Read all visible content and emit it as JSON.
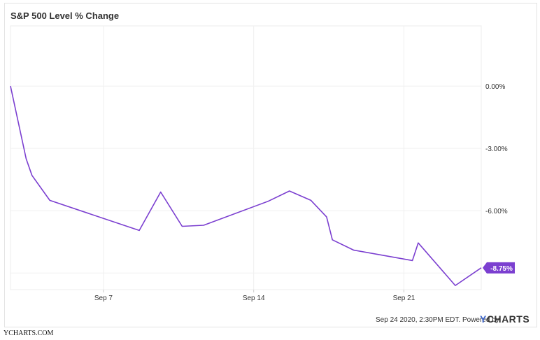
{
  "chart_data": {
    "type": "line",
    "title": "S&P 500 Level % Change",
    "ylabel": "",
    "xlabel": "",
    "ylim": [
      -9.8,
      2.9
    ],
    "y_ticks": [
      0,
      -3,
      -6
    ],
    "y_tick_labels": [
      "0.00%",
      "-3.00%",
      "-6.00%"
    ],
    "x_ticks": [
      "2020-09-07",
      "2020-09-14",
      "2020-09-21"
    ],
    "x_tick_labels": [
      "Sep 7",
      "Sep 14",
      "Sep 21"
    ],
    "grid": true,
    "series": [
      {
        "color": "#7b3fd0",
        "last_value_label": "-8.75%",
        "points": [
          {
            "x": "2020-09-02 16:00",
            "y": 0.0
          },
          {
            "x": "2020-09-03 09:30",
            "y": -3.5
          },
          {
            "x": "2020-09-03 16:00",
            "y": -4.3
          },
          {
            "x": "2020-09-04 12:00",
            "y": -5.5
          },
          {
            "x": "2020-09-08 16:00",
            "y": -6.95
          },
          {
            "x": "2020-09-09 16:00",
            "y": -5.1
          },
          {
            "x": "2020-09-10 16:00",
            "y": -6.75
          },
          {
            "x": "2020-09-11 16:00",
            "y": -6.7
          },
          {
            "x": "2020-09-14 16:00",
            "y": -5.55
          },
          {
            "x": "2020-09-15 16:00",
            "y": -5.05
          },
          {
            "x": "2020-09-16 16:00",
            "y": -5.5
          },
          {
            "x": "2020-09-17 09:30",
            "y": -6.3
          },
          {
            "x": "2020-09-17 16:00",
            "y": -7.4
          },
          {
            "x": "2020-09-18 16:00",
            "y": -7.9
          },
          {
            "x": "2020-09-21 09:30",
            "y": -8.4
          },
          {
            "x": "2020-09-21 16:00",
            "y": -7.55
          },
          {
            "x": "2020-09-23 09:30",
            "y": -9.6
          },
          {
            "x": "2020-09-24 14:30",
            "y": -8.75
          }
        ]
      }
    ]
  },
  "footer": {
    "timestamp": "Sep 24 2020, 2:30PM EDT. Powered by",
    "brand_y": "Y",
    "brand_rest": "CHARTS"
  },
  "credit": "YCHARTS.COM"
}
